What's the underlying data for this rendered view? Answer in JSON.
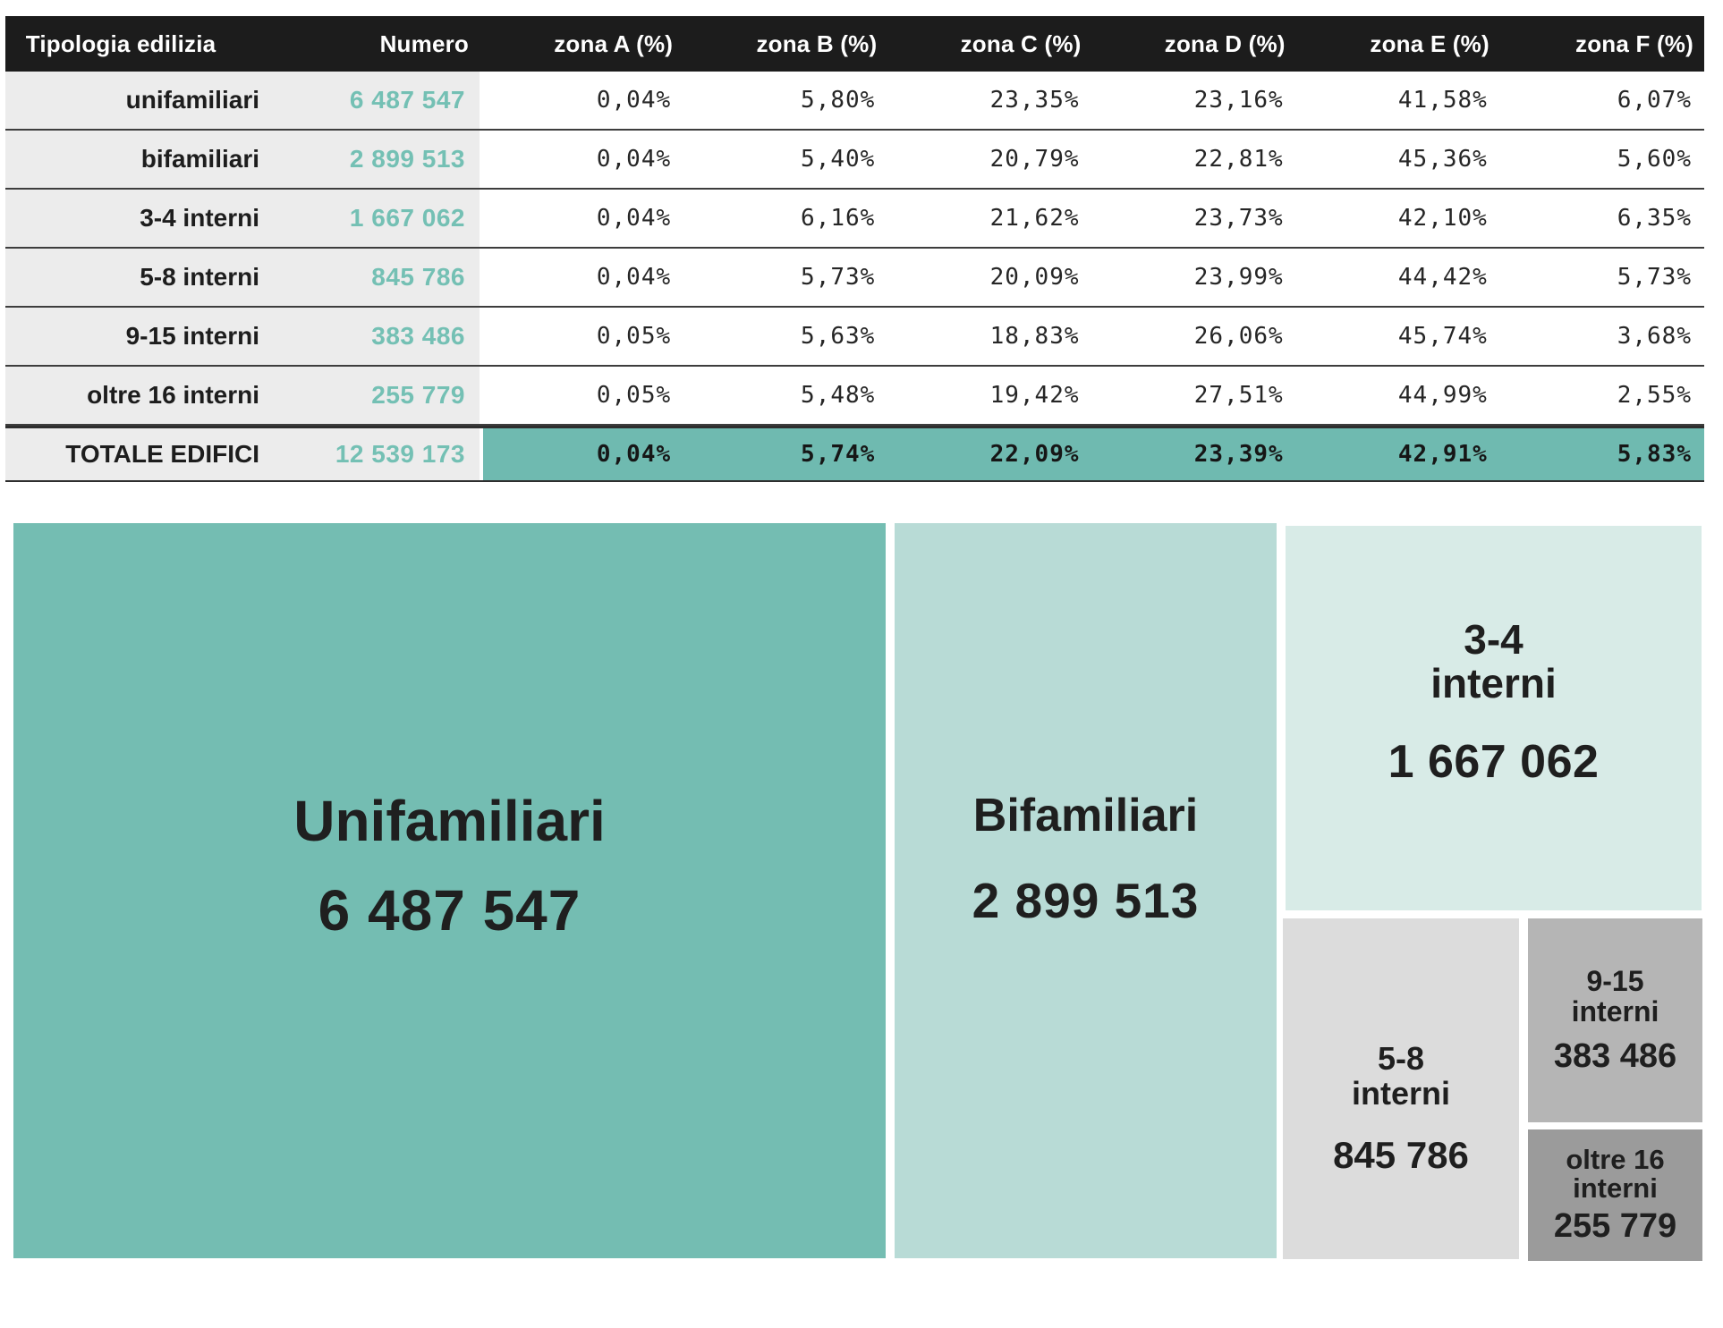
{
  "table": {
    "columns": [
      "Tipologia edilizia",
      "Numero",
      "zona A (%)",
      "zona B (%)",
      "zona C (%)",
      "zona D (%)",
      "zona E (%)",
      "zona F (%)"
    ],
    "rows": [
      [
        "unifamiliari",
        "6 487 547",
        "0,04%",
        "5,80%",
        "23,35%",
        "23,16%",
        "41,58%",
        "6,07%"
      ],
      [
        "bifamiliari",
        "2 899 513",
        "0,04%",
        "5,40%",
        "20,79%",
        "22,81%",
        "45,36%",
        "5,60%"
      ],
      [
        "3-4 interni",
        "1 667 062",
        "0,04%",
        "6,16%",
        "21,62%",
        "23,73%",
        "42,10%",
        "6,35%"
      ],
      [
        "5-8 interni",
        "845 786",
        "0,04%",
        "5,73%",
        "20,09%",
        "23,99%",
        "44,42%",
        "5,73%"
      ],
      [
        "9-15 interni",
        "383 486",
        "0,05%",
        "5,63%",
        "18,83%",
        "26,06%",
        "45,74%",
        "3,68%"
      ],
      [
        "oltre 16 interni",
        "255 779",
        "0,05%",
        "5,48%",
        "19,42%",
        "27,51%",
        "44,99%",
        "2,55%"
      ],
      [
        "TOTALE EDIFICI",
        "12 539 173",
        "0,04%",
        "5,74%",
        "22,09%",
        "23,39%",
        "42,91%",
        "5,83%"
      ]
    ]
  },
  "treemap": {
    "unifamiliari": {
      "label": "Unifamiliari",
      "value": "6 487 547"
    },
    "bifamiliari": {
      "label": "Bifamiliari",
      "value": "2 899 513"
    },
    "interni_3_4": {
      "line1": "3-4",
      "line2": "interni",
      "value": "1 667 062"
    },
    "interni_5_8": {
      "line1": "5-8",
      "line2": "interni",
      "value": "845 786"
    },
    "interni_9_15": {
      "line1": "9-15",
      "line2": "interni",
      "value": "383 486"
    },
    "interni_16": {
      "line1": "oltre 16",
      "line2": "interni",
      "value": "255 779"
    }
  },
  "colors": {
    "header_bg": "#1c1c1c",
    "header_text": "#ffffff",
    "label_column_bg": "#ececec",
    "numero_text": "#74c0b4",
    "total_band": "#6fbab0",
    "block_unifamiliari": "#74bdb2",
    "block_bifamiliari": "#b8dbd6",
    "block_3_4": "#d8ebe7",
    "block_5_8": "#dcdcdc",
    "block_9_15": "#b5b5b5",
    "block_oltre_16": "#9b9b9b",
    "text_dark": "#1f1f1f"
  },
  "chart_data": [
    {
      "type": "table",
      "title": "Edifici per tipologia edilizia e zona climatica",
      "columns": [
        "Tipologia edilizia",
        "Numero",
        "zona A (%)",
        "zona B (%)",
        "zona C (%)",
        "zona D (%)",
        "zona E (%)",
        "zona F (%)"
      ],
      "rows": [
        {
          "tipologia": "unifamiliari",
          "numero": 6487547,
          "zona_a": 0.04,
          "zona_b": 5.8,
          "zona_c": 23.35,
          "zona_d": 23.16,
          "zona_e": 41.58,
          "zona_f": 6.07
        },
        {
          "tipologia": "bifamiliari",
          "numero": 2899513,
          "zona_a": 0.04,
          "zona_b": 5.4,
          "zona_c": 20.79,
          "zona_d": 22.81,
          "zona_e": 45.36,
          "zona_f": 5.6
        },
        {
          "tipologia": "3-4 interni",
          "numero": 1667062,
          "zona_a": 0.04,
          "zona_b": 6.16,
          "zona_c": 21.62,
          "zona_d": 23.73,
          "zona_e": 42.1,
          "zona_f": 6.35
        },
        {
          "tipologia": "5-8 interni",
          "numero": 845786,
          "zona_a": 0.04,
          "zona_b": 5.73,
          "zona_c": 20.09,
          "zona_d": 23.99,
          "zona_e": 44.42,
          "zona_f": 5.73
        },
        {
          "tipologia": "9-15 interni",
          "numero": 383486,
          "zona_a": 0.05,
          "zona_b": 5.63,
          "zona_c": 18.83,
          "zona_d": 26.06,
          "zona_e": 45.74,
          "zona_f": 3.68
        },
        {
          "tipologia": "oltre 16 interni",
          "numero": 255779,
          "zona_a": 0.05,
          "zona_b": 5.48,
          "zona_c": 19.42,
          "zona_d": 27.51,
          "zona_e": 44.99,
          "zona_f": 2.55
        },
        {
          "tipologia": "TOTALE EDIFICI",
          "numero": 12539173,
          "zona_a": 0.04,
          "zona_b": 5.74,
          "zona_c": 22.09,
          "zona_d": 23.39,
          "zona_e": 42.91,
          "zona_f": 5.83
        }
      ]
    },
    {
      "type": "treemap",
      "categories": [
        "Unifamiliari",
        "Bifamiliari",
        "3-4 interni",
        "5-8 interni",
        "9-15 interni",
        "oltre 16 interni"
      ],
      "values": [
        6487547,
        2899513,
        1667062,
        845786,
        383486,
        255779
      ],
      "total": 12539173,
      "legend_position": "none",
      "labels_inside": true
    }
  ]
}
